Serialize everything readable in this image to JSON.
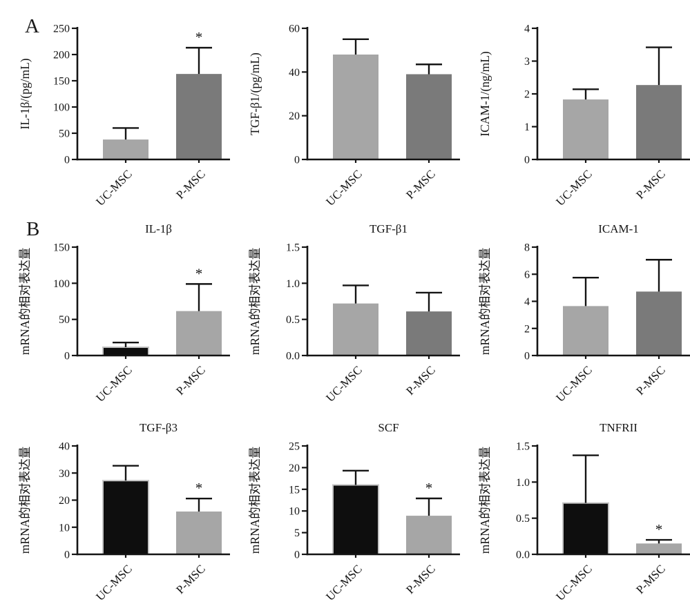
{
  "figure": {
    "panel_a_label": "A",
    "panel_b_label": "B",
    "categories": [
      "UC-MSC",
      "P-MSC"
    ],
    "colors": {
      "axis": "#141414",
      "light_gray_bar": "#a6a6a6",
      "dark_gray_bar": "#7a7a7a",
      "black_bar": "#0e0e0e",
      "black_bar_outline": "#c4c4c4",
      "background": "#ffffff"
    }
  },
  "chart_data": [
    {
      "type": "bar",
      "panel": "A",
      "title": "",
      "ylabel": "IL-1β/(pg/mL)",
      "categories": [
        "UC-MSC",
        "P-MSC"
      ],
      "ylim": [
        0,
        250
      ],
      "yticks": [
        "0",
        "50",
        "100",
        "150",
        "200",
        "250"
      ],
      "bars": [
        {
          "category": "UC-MSC",
          "value": 38,
          "error_plus": 22,
          "error_top": 60,
          "fill": "#a6a6a6",
          "outline": "",
          "sig": ""
        },
        {
          "category": "P-MSC",
          "value": 163,
          "error_plus": 50,
          "error_top": 213,
          "fill": "#7a7a7a",
          "outline": "",
          "sig": "*"
        }
      ]
    },
    {
      "type": "bar",
      "panel": "A",
      "title": "",
      "ylabel": "TGF-β1/(pg/mL)",
      "categories": [
        "UC-MSC",
        "P-MSC"
      ],
      "ylim": [
        0,
        60
      ],
      "yticks": [
        "0",
        "20",
        "40",
        "60"
      ],
      "bars": [
        {
          "category": "UC-MSC",
          "value": 48,
          "error_plus": 7,
          "error_top": 55,
          "fill": "#a6a6a6",
          "outline": "",
          "sig": ""
        },
        {
          "category": "P-MSC",
          "value": 39,
          "error_plus": 4.5,
          "error_top": 43.5,
          "fill": "#7a7a7a",
          "outline": "",
          "sig": ""
        }
      ]
    },
    {
      "type": "bar",
      "panel": "A",
      "title": "",
      "ylabel": "ICAM-1/(ng/mL)",
      "categories": [
        "UC-MSC",
        "P-MSC"
      ],
      "ylim": [
        0,
        4
      ],
      "yticks": [
        "0",
        "1",
        "2",
        "3",
        "4"
      ],
      "bars": [
        {
          "category": "UC-MSC",
          "value": 1.83,
          "error_plus": 0.31,
          "error_top": 2.14,
          "fill": "#a6a6a6",
          "outline": "",
          "sig": ""
        },
        {
          "category": "P-MSC",
          "value": 2.27,
          "error_plus": 1.15,
          "error_top": 3.42,
          "fill": "#7a7a7a",
          "outline": "",
          "sig": ""
        }
      ]
    },
    {
      "type": "bar",
      "panel": "B",
      "title": "IL-1β",
      "ylabel": "mRNA的相对表达量",
      "categories": [
        "UC-MSC",
        "P-MSC"
      ],
      "ylim": [
        0,
        150
      ],
      "yticks": [
        "0",
        "50",
        "100",
        "150"
      ],
      "bars": [
        {
          "category": "UC-MSC",
          "value": 11.5,
          "error_plus": 6.5,
          "error_top": 18,
          "fill": "#0e0e0e",
          "outline": "#c4c4c4",
          "sig": ""
        },
        {
          "category": "P-MSC",
          "value": 61.5,
          "error_plus": 37.5,
          "error_top": 99,
          "fill": "#a6a6a6",
          "outline": "",
          "sig": "*"
        }
      ]
    },
    {
      "type": "bar",
      "panel": "B",
      "title": "TGF-β1",
      "ylabel": "mRNA的相对表达量",
      "categories": [
        "UC-MSC",
        "P-MSC"
      ],
      "ylim": [
        0,
        1.5
      ],
      "yticks": [
        "0.0",
        "0.5",
        "1.0",
        "1.5"
      ],
      "bars": [
        {
          "category": "UC-MSC",
          "value": 0.72,
          "error_plus": 0.25,
          "error_top": 0.97,
          "fill": "#a6a6a6",
          "outline": "",
          "sig": ""
        },
        {
          "category": "P-MSC",
          "value": 0.61,
          "error_plus": 0.26,
          "error_top": 0.87,
          "fill": "#7a7a7a",
          "outline": "",
          "sig": ""
        }
      ]
    },
    {
      "type": "bar",
      "panel": "B",
      "title": "ICAM-1",
      "ylabel": "mRNA的相对表达量",
      "categories": [
        "UC-MSC",
        "P-MSC"
      ],
      "ylim": [
        0,
        8
      ],
      "yticks": [
        "0",
        "2",
        "4",
        "6",
        "8"
      ],
      "bars": [
        {
          "category": "UC-MSC",
          "value": 3.65,
          "error_plus": 2.1,
          "error_top": 5.75,
          "fill": "#a6a6a6",
          "outline": "",
          "sig": ""
        },
        {
          "category": "P-MSC",
          "value": 4.72,
          "error_plus": 2.35,
          "error_top": 7.07,
          "fill": "#7a7a7a",
          "outline": "",
          "sig": ""
        }
      ]
    },
    {
      "type": "bar",
      "panel": "B",
      "title": "TGF-β3",
      "ylabel": "mRNA的相对表达量",
      "categories": [
        "UC-MSC",
        "P-MSC"
      ],
      "ylim": [
        0,
        40
      ],
      "yticks": [
        "0",
        "10",
        "20",
        "30",
        "40"
      ],
      "bars": [
        {
          "category": "UC-MSC",
          "value": 27.2,
          "error_plus": 5.5,
          "error_top": 32.7,
          "fill": "#0e0e0e",
          "outline": "#c4c4c4",
          "sig": ""
        },
        {
          "category": "P-MSC",
          "value": 15.8,
          "error_plus": 4.8,
          "error_top": 20.6,
          "fill": "#a6a6a6",
          "outline": "",
          "sig": "*"
        }
      ]
    },
    {
      "type": "bar",
      "panel": "B",
      "title": "SCF",
      "ylabel": "mRNA的相对表达量",
      "categories": [
        "UC-MSC",
        "P-MSC"
      ],
      "ylim": [
        0,
        25
      ],
      "yticks": [
        "0",
        "5",
        "10",
        "15",
        "20",
        "25"
      ],
      "bars": [
        {
          "category": "UC-MSC",
          "value": 16,
          "error_plus": 3.3,
          "error_top": 19.3,
          "fill": "#0e0e0e",
          "outline": "#c4c4c4",
          "sig": ""
        },
        {
          "category": "P-MSC",
          "value": 8.9,
          "error_plus": 4,
          "error_top": 12.9,
          "fill": "#a6a6a6",
          "outline": "",
          "sig": "*"
        }
      ]
    },
    {
      "type": "bar",
      "panel": "B",
      "title": "TNFRII",
      "ylabel": "mRNA的相对表达量",
      "categories": [
        "UC-MSC",
        "P-MSC"
      ],
      "ylim": [
        0,
        1.5
      ],
      "yticks": [
        "0.0",
        "0.5",
        "1.0",
        "1.5"
      ],
      "bars": [
        {
          "category": "UC-MSC",
          "value": 0.71,
          "error_plus": 0.66,
          "error_top": 1.37,
          "fill": "#0e0e0e",
          "outline": "#c4c4c4",
          "sig": ""
        },
        {
          "category": "P-MSC",
          "value": 0.15,
          "error_plus": 0.05,
          "error_top": 0.2,
          "fill": "#a6a6a6",
          "outline": "",
          "sig": "*"
        }
      ]
    }
  ]
}
